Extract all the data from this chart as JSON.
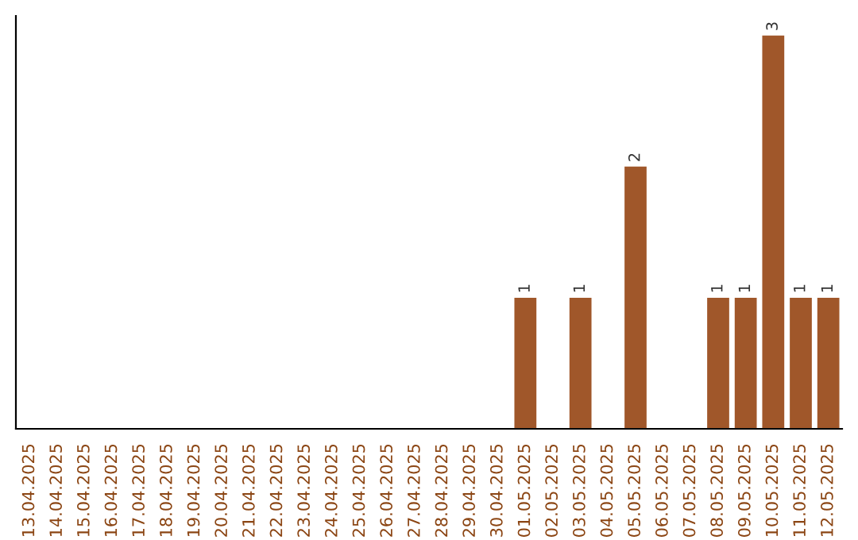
{
  "chart_data": {
    "type": "bar",
    "categories": [
      "13.04.2025",
      "14.04.2025",
      "15.04.2025",
      "16.04.2025",
      "17.04.2025",
      "18.04.2025",
      "19.04.2025",
      "20.04.2025",
      "21.04.2025",
      "22.04.2025",
      "23.04.2025",
      "24.04.2025",
      "25.04.2025",
      "26.04.2025",
      "27.04.2025",
      "28.04.2025",
      "29.04.2025",
      "30.04.2025",
      "01.05.2025",
      "02.05.2025",
      "03.05.2025",
      "04.05.2025",
      "05.05.2025",
      "06.05.2025",
      "07.05.2025",
      "08.05.2025",
      "09.05.2025",
      "10.05.2025",
      "11.05.2025",
      "12.05.2025"
    ],
    "values": [
      null,
      null,
      null,
      null,
      null,
      null,
      null,
      null,
      null,
      null,
      null,
      null,
      null,
      null,
      null,
      null,
      null,
      null,
      1,
      null,
      1,
      null,
      2,
      null,
      null,
      1,
      1,
      3,
      1,
      1
    ],
    "value_labels": [
      null,
      null,
      null,
      null,
      null,
      null,
      null,
      null,
      null,
      null,
      null,
      null,
      null,
      null,
      null,
      null,
      null,
      null,
      "1",
      null,
      "1",
      null,
      "2",
      null,
      null,
      "1",
      "1",
      "3",
      "1",
      "1"
    ],
    "color": "#a0572a",
    "tick_labels": "x",
    "grid": false,
    "legend": false
  }
}
